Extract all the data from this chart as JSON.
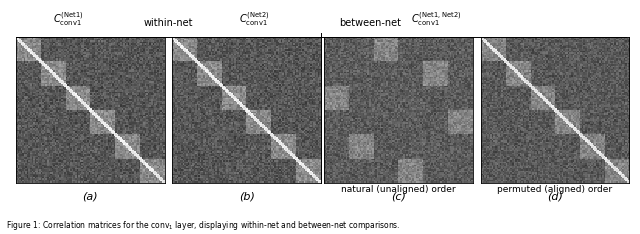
{
  "fig_width": 6.4,
  "fig_height": 2.34,
  "dpi": 100,
  "background_color": "#ffffff",
  "matrix_size": 96,
  "num_blocks": 6,
  "label_a": "(a)",
  "label_b": "(b)",
  "label_c": "(c)",
  "label_d": "(d)",
  "title_within": "within-net",
  "title_between": "between-net",
  "label_c_sub": "natural (unaligned) order",
  "label_d_sub": "permuted (aligned) order",
  "col_label_1": "$C_{\\mathrm{conv1}}^{\\mathrm{(Net1)}}$",
  "col_label_2": "$C_{\\mathrm{conv1}}^{\\mathrm{(Net2)}}$",
  "col_label_3": "$C_{\\mathrm{conv1}}^{\\mathrm{(Net1,Net2)}}$",
  "font_size_label": 7,
  "font_size_sublabel": 7,
  "font_size_abc": 8
}
